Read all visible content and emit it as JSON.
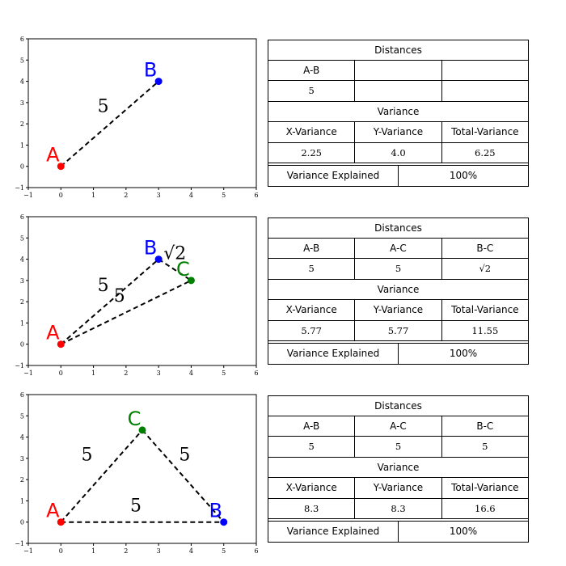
{
  "chart_data": [
    {
      "type": "scatter",
      "xlim": [
        -1,
        6
      ],
      "ylim": [
        -1,
        6
      ],
      "xticks": [
        "−1",
        "0",
        "1",
        "2",
        "3",
        "4",
        "5",
        "6"
      ],
      "yticks": [
        "−1",
        "0",
        "1",
        "2",
        "3",
        "4",
        "5",
        "6"
      ],
      "points": [
        {
          "label": "A",
          "x": 0,
          "y": 0,
          "color": "#ff0000"
        },
        {
          "label": "B",
          "x": 3,
          "y": 4,
          "color": "#0000ff"
        }
      ],
      "edges": [
        {
          "from": 0,
          "to": 1,
          "label": "5",
          "lx": 1.3,
          "ly": 2.55
        }
      ],
      "table": {
        "distances_title": "Distances",
        "distance_headers": [
          "A-B",
          "",
          ""
        ],
        "distance_values": [
          "5",
          "",
          ""
        ],
        "variance_title": "Variance",
        "variance_headers": [
          "X-Variance",
          "Y-Variance",
          "Total-Variance"
        ],
        "variance_values": [
          "2.25",
          "4.0",
          "6.25"
        ],
        "explained_label": "Variance Explained",
        "explained_value": "100%"
      }
    },
    {
      "type": "scatter",
      "xlim": [
        -1,
        6
      ],
      "ylim": [
        -1,
        6
      ],
      "xticks": [
        "−1",
        "0",
        "1",
        "2",
        "3",
        "4",
        "5",
        "6"
      ],
      "yticks": [
        "−1",
        "0",
        "1",
        "2",
        "3",
        "4",
        "5",
        "6"
      ],
      "points": [
        {
          "label": "A",
          "x": 0,
          "y": 0,
          "color": "#ff0000"
        },
        {
          "label": "B",
          "x": 3,
          "y": 4,
          "color": "#0000ff"
        },
        {
          "label": "C",
          "x": 4,
          "y": 3,
          "color": "#008000"
        }
      ],
      "edges": [
        {
          "from": 0,
          "to": 1,
          "label": "5",
          "lx": 1.3,
          "ly": 2.5
        },
        {
          "from": 0,
          "to": 2,
          "label": "5",
          "lx": 1.8,
          "ly": 2.0
        },
        {
          "from": 1,
          "to": 2,
          "label": "√2",
          "lx": 3.5,
          "ly": 4.0
        }
      ],
      "table": {
        "distances_title": "Distances",
        "distance_headers": [
          "A-B",
          "A-C",
          "B-C"
        ],
        "distance_values": [
          "5",
          "5",
          "√2"
        ],
        "variance_title": "Variance",
        "variance_headers": [
          "X-Variance",
          "Y-Variance",
          "Total-Variance"
        ],
        "variance_values": [
          "5.77",
          "5.77",
          "11.55"
        ],
        "explained_label": "Variance Explained",
        "explained_value": "100%"
      }
    },
    {
      "type": "scatter",
      "xlim": [
        -1,
        6
      ],
      "ylim": [
        -1,
        6
      ],
      "xticks": [
        "−1",
        "0",
        "1",
        "2",
        "3",
        "4",
        "5",
        "6"
      ],
      "yticks": [
        "−1",
        "0",
        "1",
        "2",
        "3",
        "4",
        "5",
        "6"
      ],
      "points": [
        {
          "label": "A",
          "x": 0,
          "y": 0,
          "color": "#ff0000"
        },
        {
          "label": "B",
          "x": 5,
          "y": 0,
          "color": "#0000ff"
        },
        {
          "label": "C",
          "x": 2.5,
          "y": 4.33,
          "color": "#008000"
        }
      ],
      "edges": [
        {
          "from": 0,
          "to": 2,
          "label": "5",
          "lx": 0.8,
          "ly": 2.9
        },
        {
          "from": 2,
          "to": 1,
          "label": "5",
          "lx": 3.8,
          "ly": 2.9
        },
        {
          "from": 0,
          "to": 1,
          "label": "5",
          "lx": 2.3,
          "ly": 0.5
        }
      ],
      "table": {
        "distances_title": "Distances",
        "distance_headers": [
          "A-B",
          "A-C",
          "B-C"
        ],
        "distance_values": [
          "5",
          "5",
          "5"
        ],
        "variance_title": "Variance",
        "variance_headers": [
          "X-Variance",
          "Y-Variance",
          "Total-Variance"
        ],
        "variance_values": [
          "8.3",
          "8.3",
          "16.6"
        ],
        "explained_label": "Variance Explained",
        "explained_value": "100%"
      }
    }
  ]
}
